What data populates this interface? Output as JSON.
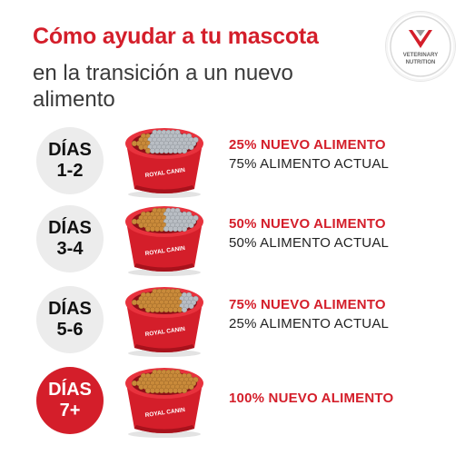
{
  "header": {
    "title": "Cómo ayudar a tu mascota",
    "subtitle": "en la transición a un nuevo alimento"
  },
  "badge": {
    "line1": "VETERINARY",
    "line2": "NUTRITION",
    "icon": "veterinary-shield-icon"
  },
  "steps": [
    {
      "days_label": "DÍAS",
      "days_range": "1-2",
      "new_food": "25% NUEVO ALIMENTO",
      "current_food": "75% ALIMENTO ACTUAL",
      "new_share": 0.25
    },
    {
      "days_label": "DÍAS",
      "days_range": "3-4",
      "new_food": "50% NUEVO ALIMENTO",
      "current_food": "50% ALIMENTO ACTUAL",
      "new_share": 0.5
    },
    {
      "days_label": "DÍAS",
      "days_range": "5-6",
      "new_food": "75% NUEVO ALIMENTO",
      "current_food": "25% ALIMENTO ACTUAL",
      "new_share": 0.75
    },
    {
      "days_label": "DÍAS",
      "days_range": "7+",
      "new_food": "100% NUEVO ALIMENTO",
      "current_food": "",
      "new_share": 1.0
    }
  ],
  "bowl_brand": "ROYAL CANIN",
  "colors": {
    "brand_red": "#d41e2a",
    "new_food": "#c98a3a",
    "current_food": "#b9bec4",
    "day_circle": "#ececec"
  }
}
